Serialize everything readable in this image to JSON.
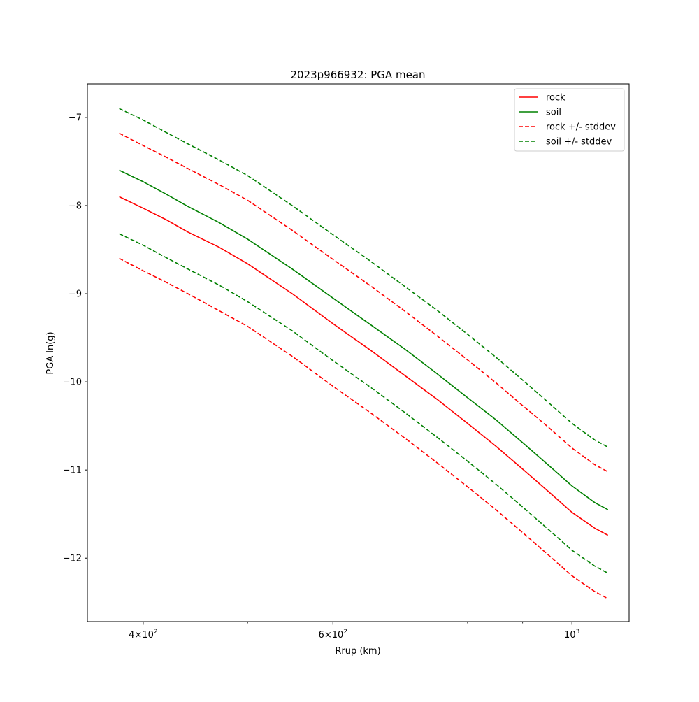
{
  "chart_data": {
    "type": "line",
    "title": "2023p966932: PGA mean",
    "xlabel": "Rrup (km)",
    "ylabel": "PGA ln(g)",
    "xscale": "log",
    "xlim": [
      355,
      1130
    ],
    "ylim": [
      -12.72,
      -6.62
    ],
    "grid": false,
    "legend_position": "top-right",
    "x_ticks": [
      {
        "value": 400,
        "label": "4×10",
        "exp": "2"
      },
      {
        "value": 600,
        "label": "6×10",
        "exp": "2"
      },
      {
        "value": 1000,
        "label": "10",
        "exp": "3"
      }
    ],
    "x_minor_ticks": [
      500,
      700,
      800,
      900
    ],
    "y_ticks": [
      {
        "value": -7,
        "label": "−7"
      },
      {
        "value": -8,
        "label": "−8"
      },
      {
        "value": -9,
        "label": "−9"
      },
      {
        "value": -10,
        "label": "−10"
      },
      {
        "value": -11,
        "label": "−11"
      },
      {
        "value": -12,
        "label": "−12"
      }
    ],
    "x": [
      380,
      400,
      420,
      440,
      470,
      500,
      550,
      600,
      650,
      700,
      750,
      800,
      850,
      900,
      950,
      1000,
      1050,
      1080
    ],
    "series": [
      {
        "name": "rock",
        "color": "#ff0000",
        "dash": "solid",
        "values": [
          -7.9,
          -8.03,
          -8.16,
          -8.3,
          -8.47,
          -8.66,
          -9.0,
          -9.34,
          -9.64,
          -9.93,
          -10.2,
          -10.47,
          -10.73,
          -10.99,
          -11.24,
          -11.48,
          -11.66,
          -11.74
        ]
      },
      {
        "name": "soil",
        "color": "#008000",
        "dash": "solid",
        "values": [
          -7.6,
          -7.73,
          -7.87,
          -8.01,
          -8.19,
          -8.38,
          -8.72,
          -9.05,
          -9.35,
          -9.63,
          -9.91,
          -10.18,
          -10.43,
          -10.69,
          -10.94,
          -11.18,
          -11.37,
          -11.45
        ]
      },
      {
        "name": "rock +/- stddev",
        "color": "#ff0000",
        "dash": "dashed",
        "values": [
          -7.18,
          -7.32,
          -7.45,
          -7.58,
          -7.76,
          -7.94,
          -8.28,
          -8.61,
          -8.91,
          -9.2,
          -9.48,
          -9.75,
          -10.01,
          -10.27,
          -10.51,
          -10.75,
          -10.94,
          -11.02
        ]
      },
      {
        "name": "",
        "color": "#ff0000",
        "dash": "dashed",
        "values": [
          -8.6,
          -8.74,
          -8.87,
          -9.0,
          -9.19,
          -9.37,
          -9.71,
          -10.05,
          -10.35,
          -10.64,
          -10.92,
          -11.19,
          -11.45,
          -11.71,
          -11.96,
          -12.2,
          -12.38,
          -12.46
        ]
      },
      {
        "name": "soil +/- stddev",
        "color": "#008000",
        "dash": "dashed",
        "values": [
          -6.9,
          -7.03,
          -7.17,
          -7.3,
          -7.48,
          -7.66,
          -8.0,
          -8.33,
          -8.63,
          -8.92,
          -9.19,
          -9.46,
          -9.72,
          -9.98,
          -10.23,
          -10.47,
          -10.66,
          -10.74
        ]
      },
      {
        "name": "",
        "color": "#008000",
        "dash": "dashed",
        "values": [
          -8.32,
          -8.45,
          -8.59,
          -8.72,
          -8.9,
          -9.09,
          -9.42,
          -9.76,
          -10.06,
          -10.35,
          -10.63,
          -10.9,
          -11.16,
          -11.42,
          -11.67,
          -11.91,
          -12.09,
          -12.17
        ]
      }
    ],
    "legend": [
      {
        "label": "rock",
        "color": "#ff0000",
        "dash": "solid"
      },
      {
        "label": "soil",
        "color": "#008000",
        "dash": "solid"
      },
      {
        "label": "rock +/- stddev",
        "color": "#ff0000",
        "dash": "dashed"
      },
      {
        "label": "soil +/- stddev",
        "color": "#008000",
        "dash": "dashed"
      }
    ]
  }
}
